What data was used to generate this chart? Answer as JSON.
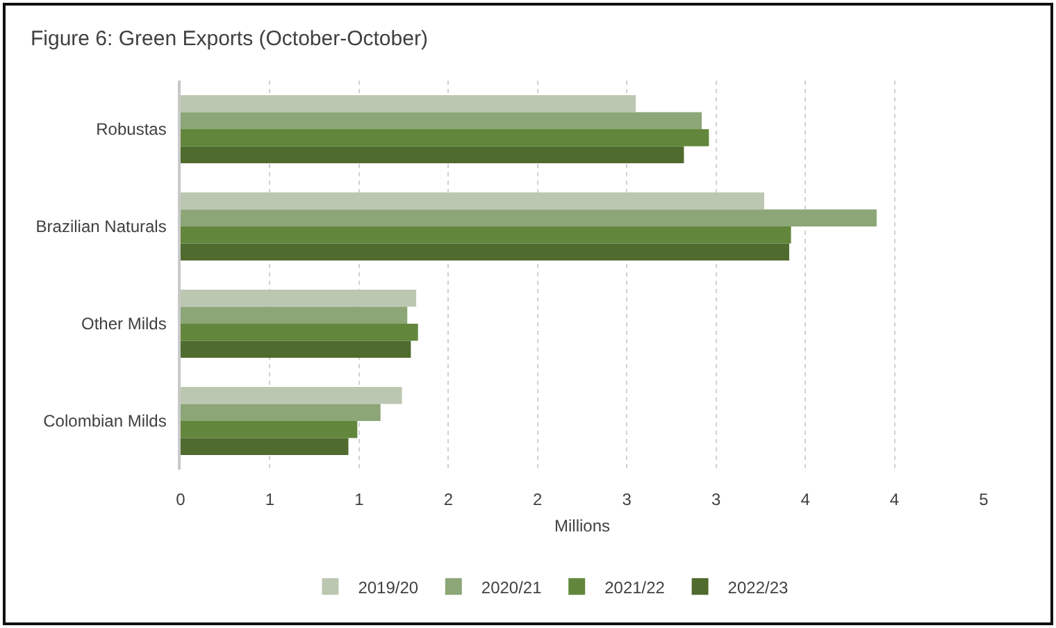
{
  "chart_data": {
    "type": "bar",
    "orientation": "horizontal",
    "title": "Figure 6: Green Exports (October-October)",
    "xlabel": "Millions",
    "categories": [
      "Robustas",
      "Brazilian Naturals",
      "Other Milds",
      "Colombian Milds"
    ],
    "series": [
      {
        "name": "2019/20",
        "color": "#bcc7b2",
        "values": [
          2.55,
          3.27,
          1.32,
          1.24
        ]
      },
      {
        "name": "2020/21",
        "color": "#8ca677",
        "values": [
          2.92,
          3.9,
          1.27,
          1.12
        ]
      },
      {
        "name": "2021/22",
        "color": "#62873c",
        "values": [
          2.96,
          3.42,
          1.33,
          0.99
        ]
      },
      {
        "name": "2022/23",
        "color": "#4f6b2e",
        "values": [
          2.82,
          3.41,
          1.29,
          0.94
        ]
      }
    ],
    "xlim": [
      0,
      4.5
    ],
    "xticks": [
      0,
      {
        "value": 0.5,
        "label": "1"
      },
      1,
      {
        "value": 1.5,
        "label": "2"
      },
      2,
      {
        "value": 2.5,
        "label": "3"
      },
      3,
      {
        "value": 3.5,
        "label": "4"
      },
      4,
      {
        "value": 4.5,
        "label": "5"
      }
    ],
    "grid": "x",
    "legend": "bottom"
  }
}
